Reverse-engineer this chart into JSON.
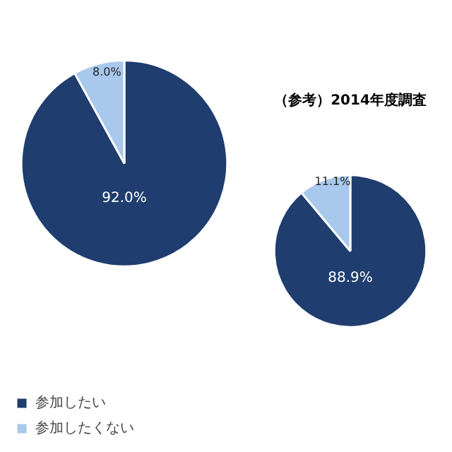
{
  "chart_data": [
    {
      "type": "pie",
      "categories": [
        "参加したい",
        "参加したくない"
      ],
      "values": [
        92.0,
        8.0
      ],
      "value_labels": [
        "92.0%",
        "8.0%"
      ],
      "colors": [
        "#1f3d6e",
        "#a8c8ec"
      ],
      "legend": "bottom left"
    },
    {
      "type": "pie",
      "title": "（参考）2014年度調査",
      "categories": [
        null,
        null
      ],
      "values": [
        88.9,
        11.1
      ],
      "value_labels": [
        "88.9%",
        "11.1%"
      ],
      "colors": [
        "#1f3d6e",
        "#a8c8ec"
      ]
    }
  ]
}
